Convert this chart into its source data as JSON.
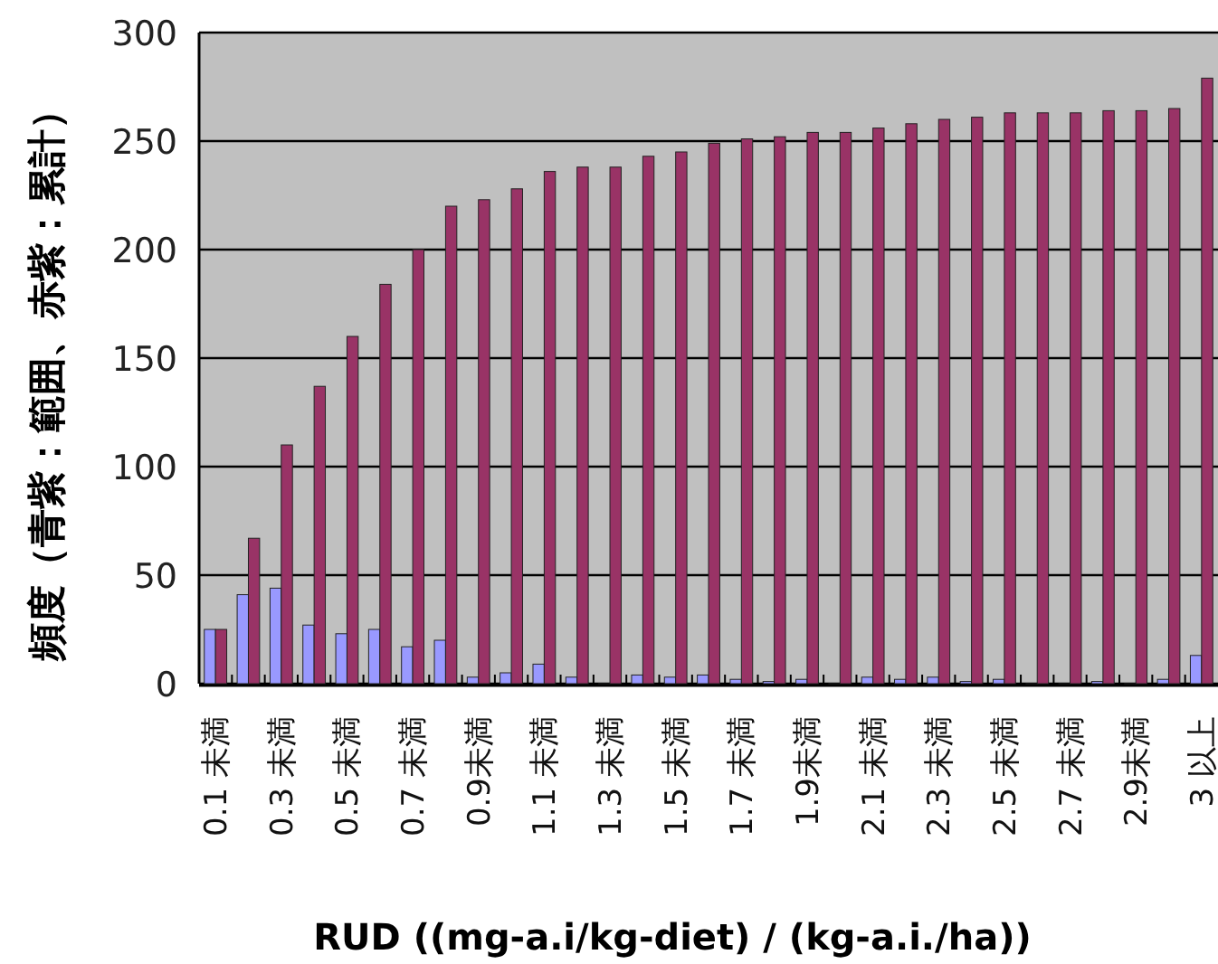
{
  "chart_data": {
    "type": "bar",
    "xlabel": "RUD ((mg-a.i/kg-diet) / (kg-a.i./ha))",
    "ylabel": "頻度（青紫：範囲、赤紫：累計）",
    "categories": [
      "0.1 未満",
      null,
      "0.3 未満",
      null,
      "0.5 未満",
      null,
      "0.7 未満",
      null,
      "0.9未満",
      null,
      "1.1 未満",
      null,
      "1.3 未満",
      null,
      "1.5 未満",
      null,
      "1.7 未満",
      null,
      "1.9未満",
      null,
      "2.1 未満",
      null,
      "2.3 未満",
      null,
      "2.5 未満",
      null,
      "2.7 未満",
      null,
      "2.9未満",
      null,
      "3 以上"
    ],
    "series": [
      {
        "color": "#9999ff",
        "values": [
          25,
          41,
          44,
          27,
          23,
          25,
          17,
          20,
          3,
          5,
          9,
          3,
          0,
          4,
          3,
          4,
          2,
          1,
          2,
          0,
          3,
          2,
          3,
          1,
          2,
          0,
          0,
          1,
          0,
          2,
          13
        ]
      },
      {
        "color": "#993366",
        "values": [
          25,
          67,
          110,
          137,
          160,
          184,
          200,
          220,
          223,
          228,
          236,
          238,
          238,
          243,
          245,
          249,
          251,
          252,
          254,
          254,
          256,
          258,
          260,
          261,
          263,
          263,
          263,
          264,
          264,
          265,
          279
        ]
      }
    ],
    "ylim": [
      0,
      300
    ],
    "yticks": [
      0,
      50,
      100,
      150,
      200,
      250,
      300
    ],
    "grid": "y"
  }
}
